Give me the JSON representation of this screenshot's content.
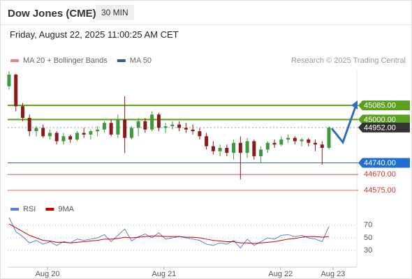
{
  "header": {
    "title": "Dow Jones (CME)",
    "interval": "30 MIN",
    "datetime": "Friday, August 22, 2025 11:00:25 AM CET"
  },
  "chart_data": [
    {
      "type": "candlestick",
      "legend": [
        {
          "name": "MA 20 + Bollinger Bands",
          "color": "#f08080"
        },
        {
          "name": "MA 50",
          "color": "#3a5a8c"
        }
      ],
      "credit": "Research © 2025 Trading Central",
      "xlim": [
        -0.2,
        51.1
      ],
      "ylim": [
        44520,
        45295
      ],
      "levels": [
        {
          "value": 45085,
          "label": "45085.00",
          "color": "#5aa01e",
          "style": "tag"
        },
        {
          "value": 45000,
          "label": "45000.00",
          "color": "#5aa01e",
          "style": "tag"
        },
        {
          "value": 44952,
          "label": "44952.00",
          "color": "#333333",
          "style": "current"
        },
        {
          "value": 44740,
          "label": "44740.00",
          "color": "#1f6fd0",
          "style": "tag"
        },
        {
          "value": 44670,
          "label": "44670.00",
          "color": "#e03030",
          "style": "text"
        },
        {
          "value": 44575,
          "label": "44575.00",
          "color": "#e03030",
          "style": "text"
        }
      ],
      "up_color": "#3c9a3c",
      "down_color": "#8b1a1a",
      "candles": [
        [
          45200,
          45290,
          45180,
          45270
        ],
        [
          45270,
          45275,
          45050,
          45080
        ],
        [
          45080,
          45100,
          44990,
          45010
        ],
        [
          45010,
          45030,
          44900,
          44930
        ],
        [
          44930,
          44960,
          44900,
          44950
        ],
        [
          44950,
          44970,
          44890,
          44900
        ],
        [
          44900,
          44940,
          44880,
          44920
        ],
        [
          44920,
          44930,
          44850,
          44870
        ],
        [
          44870,
          44920,
          44850,
          44900
        ],
        [
          44900,
          44910,
          44860,
          44880
        ],
        [
          44880,
          44930,
          44870,
          44920
        ],
        [
          44920,
          44950,
          44890,
          44910
        ],
        [
          44910,
          44940,
          44880,
          44930
        ],
        [
          44930,
          44960,
          44900,
          44940
        ],
        [
          44940,
          44990,
          44920,
          44980
        ],
        [
          44980,
          45000,
          44900,
          44910
        ],
        [
          44910,
          45030,
          44890,
          45000
        ],
        [
          45000,
          45140,
          44800,
          44890
        ],
        [
          44890,
          44960,
          44880,
          44950
        ],
        [
          44950,
          45010,
          44900,
          44990
        ],
        [
          44990,
          45010,
          44920,
          44940
        ],
        [
          44940,
          45050,
          44930,
          45030
        ],
        [
          45030,
          45040,
          44930,
          44950
        ],
        [
          44950,
          44980,
          44920,
          44960
        ],
        [
          44960,
          44990,
          44940,
          44970
        ],
        [
          44970,
          44990,
          44930,
          44950
        ],
        [
          44950,
          44980,
          44920,
          44940
        ],
        [
          44940,
          44970,
          44910,
          44930
        ],
        [
          44930,
          44950,
          44880,
          44900
        ],
        [
          44900,
          44920,
          44820,
          44840
        ],
        [
          44840,
          44870,
          44790,
          44810
        ],
        [
          44810,
          44850,
          44780,
          44830
        ],
        [
          44830,
          44850,
          44780,
          44800
        ],
        [
          44800,
          44880,
          44760,
          44860
        ],
        [
          44860,
          44900,
          44640,
          44800
        ],
        [
          44800,
          44890,
          44770,
          44870
        ],
        [
          44870,
          44880,
          44760,
          44780
        ],
        [
          44780,
          44840,
          44740,
          44820
        ],
        [
          44820,
          44870,
          44800,
          44860
        ],
        [
          44860,
          44880,
          44830,
          44850
        ],
        [
          44850,
          44900,
          44840,
          44880
        ],
        [
          44880,
          44910,
          44860,
          44890
        ],
        [
          44890,
          44900,
          44850,
          44870
        ],
        [
          44870,
          44890,
          44840,
          44880
        ],
        [
          44880,
          44890,
          44840,
          44860
        ],
        [
          44860,
          44880,
          44810,
          44850
        ],
        [
          44850,
          44870,
          44730,
          44830
        ],
        [
          44830,
          44960,
          44820,
          44952
        ]
      ]
    },
    {
      "type": "line",
      "xlim": [
        -0.2,
        51.1
      ],
      "ylim": [
        17,
        83
      ],
      "yticks": [
        30,
        50,
        70
      ],
      "xticks": [
        {
          "value": 5.65,
          "label": "Aug 20"
        },
        {
          "value": 22.77,
          "label": "Aug 21"
        },
        {
          "value": 39.9,
          "label": "Aug 22"
        },
        {
          "value": 47.6,
          "label": "Aug 23"
        }
      ],
      "series": [
        {
          "name": "RSI",
          "color": "#5b7fd6",
          "values": [
            82,
            60,
            52,
            42,
            46,
            40,
            44,
            38,
            44,
            42,
            48,
            46,
            48,
            50,
            55,
            44,
            54,
            64,
            45,
            52,
            56,
            50,
            58,
            48,
            50,
            52,
            50,
            48,
            46,
            40,
            38,
            42,
            40,
            46,
            34,
            48,
            38,
            44,
            50,
            48,
            54,
            55,
            52,
            54,
            50,
            48,
            44,
            68
          ]
        },
        {
          "name": "9MA",
          "color": "#cc0000",
          "values": [
            72,
            66,
            60,
            54,
            50,
            46,
            45,
            43,
            43,
            42,
            43,
            44,
            45,
            46,
            48,
            48,
            49,
            51,
            50,
            51,
            52,
            53,
            53,
            52,
            52,
            52,
            51,
            51,
            50,
            48,
            46,
            45,
            44,
            44,
            42,
            42,
            41,
            42,
            43,
            44,
            46,
            48,
            49,
            51,
            52,
            52,
            51,
            52
          ]
        }
      ]
    }
  ]
}
